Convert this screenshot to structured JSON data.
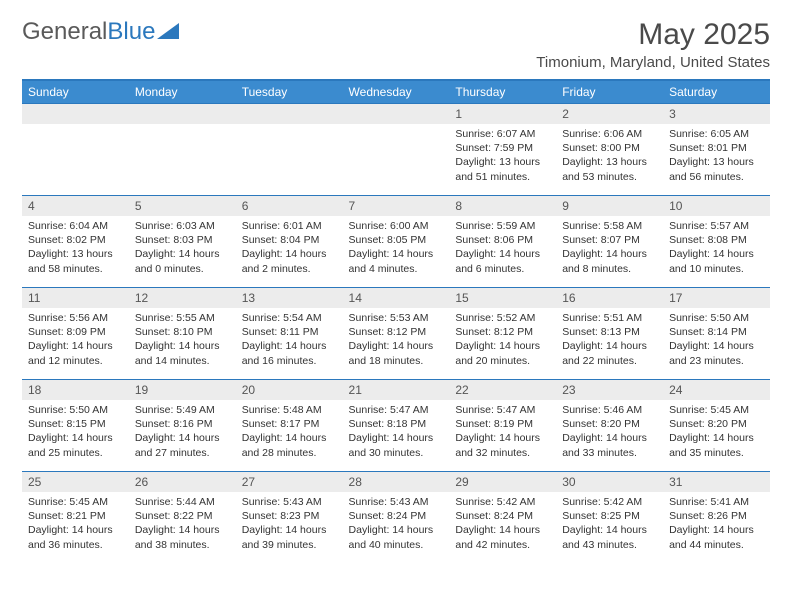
{
  "logo": {
    "text1": "General",
    "text2": "Blue",
    "triangle_color": "#2b78bd"
  },
  "title": "May 2025",
  "location": "Timonium, Maryland, United States",
  "colors": {
    "header_bg": "#3b8bcf",
    "header_text": "#ffffff",
    "border": "#2b78bd",
    "daynum_bg": "#ececec",
    "text": "#333333"
  },
  "day_headers": [
    "Sunday",
    "Monday",
    "Tuesday",
    "Wednesday",
    "Thursday",
    "Friday",
    "Saturday"
  ],
  "weeks": [
    [
      null,
      null,
      null,
      null,
      {
        "n": "1",
        "sunrise": "6:07 AM",
        "sunset": "7:59 PM",
        "daylight": "13 hours and 51 minutes."
      },
      {
        "n": "2",
        "sunrise": "6:06 AM",
        "sunset": "8:00 PM",
        "daylight": "13 hours and 53 minutes."
      },
      {
        "n": "3",
        "sunrise": "6:05 AM",
        "sunset": "8:01 PM",
        "daylight": "13 hours and 56 minutes."
      }
    ],
    [
      {
        "n": "4",
        "sunrise": "6:04 AM",
        "sunset": "8:02 PM",
        "daylight": "13 hours and 58 minutes."
      },
      {
        "n": "5",
        "sunrise": "6:03 AM",
        "sunset": "8:03 PM",
        "daylight": "14 hours and 0 minutes."
      },
      {
        "n": "6",
        "sunrise": "6:01 AM",
        "sunset": "8:04 PM",
        "daylight": "14 hours and 2 minutes."
      },
      {
        "n": "7",
        "sunrise": "6:00 AM",
        "sunset": "8:05 PM",
        "daylight": "14 hours and 4 minutes."
      },
      {
        "n": "8",
        "sunrise": "5:59 AM",
        "sunset": "8:06 PM",
        "daylight": "14 hours and 6 minutes."
      },
      {
        "n": "9",
        "sunrise": "5:58 AM",
        "sunset": "8:07 PM",
        "daylight": "14 hours and 8 minutes."
      },
      {
        "n": "10",
        "sunrise": "5:57 AM",
        "sunset": "8:08 PM",
        "daylight": "14 hours and 10 minutes."
      }
    ],
    [
      {
        "n": "11",
        "sunrise": "5:56 AM",
        "sunset": "8:09 PM",
        "daylight": "14 hours and 12 minutes."
      },
      {
        "n": "12",
        "sunrise": "5:55 AM",
        "sunset": "8:10 PM",
        "daylight": "14 hours and 14 minutes."
      },
      {
        "n": "13",
        "sunrise": "5:54 AM",
        "sunset": "8:11 PM",
        "daylight": "14 hours and 16 minutes."
      },
      {
        "n": "14",
        "sunrise": "5:53 AM",
        "sunset": "8:12 PM",
        "daylight": "14 hours and 18 minutes."
      },
      {
        "n": "15",
        "sunrise": "5:52 AM",
        "sunset": "8:12 PM",
        "daylight": "14 hours and 20 minutes."
      },
      {
        "n": "16",
        "sunrise": "5:51 AM",
        "sunset": "8:13 PM",
        "daylight": "14 hours and 22 minutes."
      },
      {
        "n": "17",
        "sunrise": "5:50 AM",
        "sunset": "8:14 PM",
        "daylight": "14 hours and 23 minutes."
      }
    ],
    [
      {
        "n": "18",
        "sunrise": "5:50 AM",
        "sunset": "8:15 PM",
        "daylight": "14 hours and 25 minutes."
      },
      {
        "n": "19",
        "sunrise": "5:49 AM",
        "sunset": "8:16 PM",
        "daylight": "14 hours and 27 minutes."
      },
      {
        "n": "20",
        "sunrise": "5:48 AM",
        "sunset": "8:17 PM",
        "daylight": "14 hours and 28 minutes."
      },
      {
        "n": "21",
        "sunrise": "5:47 AM",
        "sunset": "8:18 PM",
        "daylight": "14 hours and 30 minutes."
      },
      {
        "n": "22",
        "sunrise": "5:47 AM",
        "sunset": "8:19 PM",
        "daylight": "14 hours and 32 minutes."
      },
      {
        "n": "23",
        "sunrise": "5:46 AM",
        "sunset": "8:20 PM",
        "daylight": "14 hours and 33 minutes."
      },
      {
        "n": "24",
        "sunrise": "5:45 AM",
        "sunset": "8:20 PM",
        "daylight": "14 hours and 35 minutes."
      }
    ],
    [
      {
        "n": "25",
        "sunrise": "5:45 AM",
        "sunset": "8:21 PM",
        "daylight": "14 hours and 36 minutes."
      },
      {
        "n": "26",
        "sunrise": "5:44 AM",
        "sunset": "8:22 PM",
        "daylight": "14 hours and 38 minutes."
      },
      {
        "n": "27",
        "sunrise": "5:43 AM",
        "sunset": "8:23 PM",
        "daylight": "14 hours and 39 minutes."
      },
      {
        "n": "28",
        "sunrise": "5:43 AM",
        "sunset": "8:24 PM",
        "daylight": "14 hours and 40 minutes."
      },
      {
        "n": "29",
        "sunrise": "5:42 AM",
        "sunset": "8:24 PM",
        "daylight": "14 hours and 42 minutes."
      },
      {
        "n": "30",
        "sunrise": "5:42 AM",
        "sunset": "8:25 PM",
        "daylight": "14 hours and 43 minutes."
      },
      {
        "n": "31",
        "sunrise": "5:41 AM",
        "sunset": "8:26 PM",
        "daylight": "14 hours and 44 minutes."
      }
    ]
  ]
}
